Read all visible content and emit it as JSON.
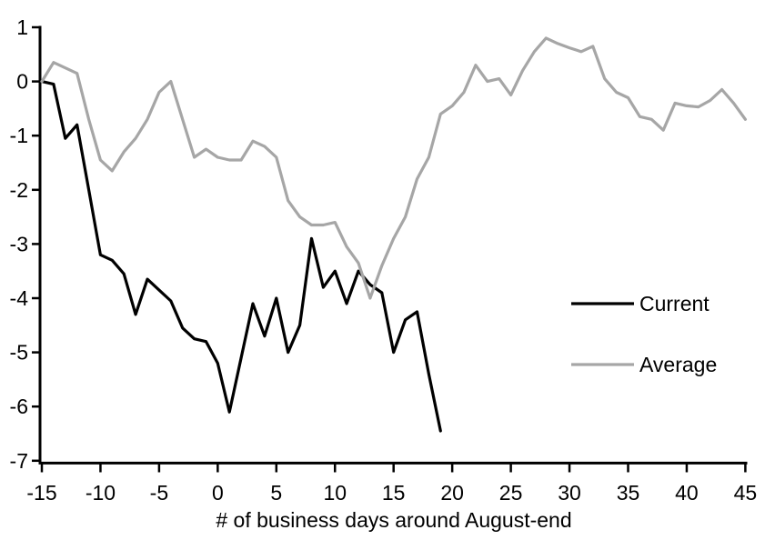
{
  "figure": {
    "background": "#ffffff",
    "axis_color": "#000000"
  },
  "legend": {
    "items": [
      {
        "label": "Current",
        "color": "#000000"
      },
      {
        "label": "Average",
        "color": "#a6a6a6"
      }
    ]
  },
  "chart_data": {
    "type": "line",
    "title": "",
    "xlabel": "# of business days around August-end",
    "ylabel": "",
    "xlim": [
      -15,
      45
    ],
    "ylim": [
      -7,
      1
    ],
    "x_ticks": [
      -15,
      -10,
      -5,
      0,
      5,
      10,
      15,
      20,
      25,
      30,
      35,
      40,
      45
    ],
    "y_ticks": [
      1,
      0,
      -1,
      -2,
      -3,
      -4,
      -5,
      -6,
      -7
    ],
    "grid": false,
    "legend_position": "right-middle",
    "series": [
      {
        "name": "Current",
        "color": "#000000",
        "x_start": -15,
        "x_step": 1,
        "values": [
          0,
          -0.05,
          -1.05,
          -0.8,
          -2.0,
          -3.2,
          -3.3,
          -3.55,
          -4.3,
          -3.65,
          -3.85,
          -4.05,
          -4.55,
          -4.75,
          -4.8,
          -5.2,
          -6.1,
          -5.1,
          -4.1,
          -4.7,
          -4.0,
          -5.0,
          -4.5,
          -2.9,
          -3.8,
          -3.5,
          -4.1,
          -3.5,
          -3.75,
          -3.9,
          -5.0,
          -4.4,
          -4.25,
          -5.4,
          -6.45
        ]
      },
      {
        "name": "Average",
        "color": "#a6a6a6",
        "x_start": -15,
        "x_step": 1,
        "values": [
          0,
          0.35,
          0.25,
          0.15,
          -0.7,
          -1.45,
          -1.65,
          -1.3,
          -1.05,
          -0.7,
          -0.2,
          0.0,
          -0.7,
          -1.4,
          -1.25,
          -1.4,
          -1.45,
          -1.45,
          -1.1,
          -1.2,
          -1.4,
          -2.2,
          -2.5,
          -2.65,
          -2.65,
          -2.6,
          -3.05,
          -3.35,
          -4.0,
          -3.4,
          -2.9,
          -2.5,
          -1.8,
          -1.4,
          -0.6,
          -0.45,
          -0.2,
          0.3,
          0.0,
          0.05,
          -0.25,
          0.2,
          0.55,
          0.8,
          0.7,
          0.62,
          0.55,
          0.65,
          0.05,
          -0.2,
          -0.3,
          -0.65,
          -0.7,
          -0.9,
          -0.4,
          -0.45,
          -0.47,
          -0.35,
          -0.15,
          -0.4,
          -0.7
        ]
      }
    ]
  }
}
